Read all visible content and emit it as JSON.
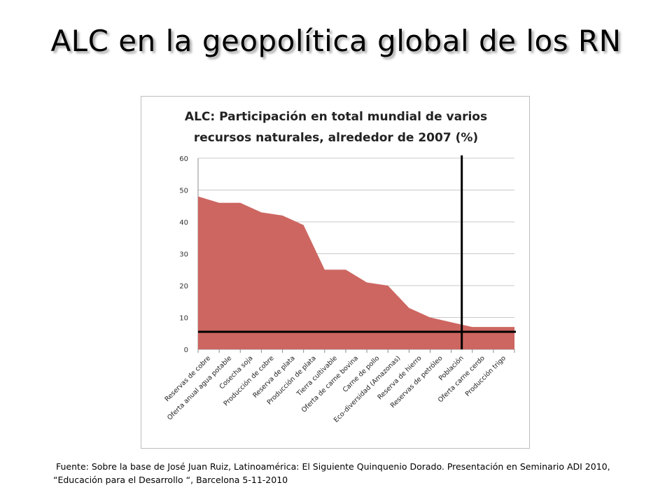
{
  "slide": {
    "title": "ALC en la geopolítica global de los RN",
    "source_line1": "Fuente: Sobre la base de José Juan Ruiz, Latinoamérica: El Siguiente Quinquenio Dorado. Presentación en Seminario ADI 2010,",
    "source_line2": "“Educación para el Desarrollo “, Barcelona 5-11-2010"
  },
  "chart_data": {
    "type": "area",
    "title": "ALC: Participación en total mundial de varios recursos naturales, alrededor de 2007 (%)",
    "title_lines": [
      "ALC: Participación en total mundial de varios",
      "recursos naturales, alrededor de 2007 (%)"
    ],
    "categories": [
      "Reservas de cobre",
      "Oferta anual agua potable",
      "Cosecha soja",
      "Producción de cobre",
      "Reserva de plata",
      "Producción de plata",
      "Tierra cultivable",
      "Oferta de carne bovina",
      "Carne de pollo",
      "Eco-diversidad (Amazonas)",
      "Reserva de hierro",
      "Reservas de petróleo",
      "Población",
      "Oferta carne cerdo",
      "Producción trigo"
    ],
    "values": [
      48,
      46,
      46,
      43,
      42,
      39,
      25,
      25,
      21,
      20,
      13,
      10,
      8.5,
      7,
      7
    ],
    "ylim": [
      0,
      60
    ],
    "yticks": [
      "0",
      "10",
      "20",
      "30",
      "40",
      "50",
      "60"
    ],
    "xlabel": "",
    "ylabel": "",
    "grid": true,
    "colors": {
      "area": "#cd6661",
      "grid": "#c8c8c8",
      "reference": "#000000"
    },
    "reference_lines": {
      "horizontal_y": 5.5,
      "vertical_category": "Población"
    }
  }
}
